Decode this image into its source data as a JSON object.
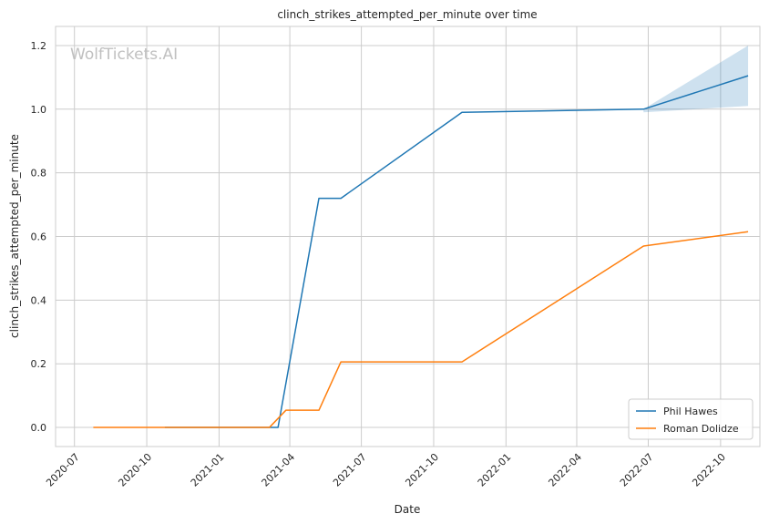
{
  "watermark": "WolfTickets.AI",
  "chart_data": {
    "type": "line",
    "title": "clinch_strikes_attempted_per_minute over time",
    "xlabel": "Date",
    "ylabel": "clinch_strikes_attempted_per_minute",
    "x_ticks": [
      "2020-07",
      "2020-10",
      "2021-01",
      "2021-04",
      "2021-07",
      "2021-10",
      "2022-01",
      "2022-04",
      "2022-07",
      "2022-10"
    ],
    "y_ticks": [
      "0.0",
      "0.2",
      "0.4",
      "0.6",
      "0.8",
      "1.0",
      "1.2"
    ],
    "ylim": [
      -0.06,
      1.26
    ],
    "xlim": [
      "2020-06-07",
      "2022-11-20"
    ],
    "grid": true,
    "legend_position": "bottom-right",
    "series": [
      {
        "name": "Phil Hawes",
        "color": "#1f77b4",
        "x": [
          "2020-10-24",
          "2021-03-17",
          "2021-05-08",
          "2021-06-05",
          "2021-11-06",
          "2022-06-25",
          "2022-11-05"
        ],
        "y": [
          0.0,
          0.0,
          0.72,
          0.72,
          0.99,
          1.0,
          1.105
        ],
        "band": {
          "x": [
            "2022-06-25",
            "2022-11-05"
          ],
          "lower": [
            0.99,
            1.01
          ],
          "upper": [
            1.0,
            1.2
          ]
        }
      },
      {
        "name": "Roman Dolidze",
        "color": "#ff7f0e",
        "x": [
          "2020-07-25",
          "2021-03-06",
          "2021-03-27",
          "2021-05-08",
          "2021-06-05",
          "2021-11-06",
          "2022-06-25",
          "2022-11-05"
        ],
        "y": [
          0.0,
          0.0,
          0.054,
          0.054,
          0.206,
          0.206,
          0.57,
          0.615
        ]
      }
    ]
  }
}
